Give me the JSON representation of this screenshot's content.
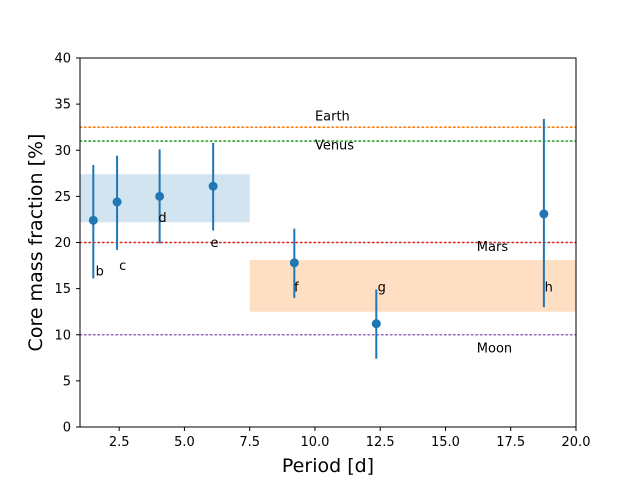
{
  "chart_data": {
    "type": "scatter",
    "title": "",
    "xlabel": "Period [d]",
    "ylabel": "Core mass fraction [%]",
    "xlim": [
      1.0,
      20.0
    ],
    "ylim": [
      0,
      40
    ],
    "xticks": [
      2.5,
      5.0,
      7.5,
      10.0,
      12.5,
      15.0,
      17.5,
      20.0
    ],
    "xtick_labels": [
      "2.5",
      "5.0",
      "7.5",
      "10.0",
      "12.5",
      "15.0",
      "17.5",
      "20.0"
    ],
    "yticks": [
      0,
      5,
      10,
      15,
      20,
      25,
      30,
      35,
      40
    ],
    "ytick_labels": [
      "0",
      "5",
      "10",
      "15",
      "20",
      "25",
      "30",
      "35",
      "40"
    ],
    "grid": false,
    "marker_color": "#1f77b4",
    "points": [
      {
        "label": "b",
        "x": 1.51,
        "y": 22.4,
        "yerr_low": 6.3,
        "yerr_high": 6.0
      },
      {
        "label": "c",
        "x": 2.42,
        "y": 24.4,
        "yerr_low": 5.2,
        "yerr_high": 5.0
      },
      {
        "label": "d",
        "x": 4.05,
        "y": 25.0,
        "yerr_low": 5.1,
        "yerr_high": 5.1
      },
      {
        "label": "e",
        "x": 6.1,
        "y": 26.1,
        "yerr_low": 4.8,
        "yerr_high": 4.7
      },
      {
        "label": "f",
        "x": 9.21,
        "y": 17.8,
        "yerr_low": 3.8,
        "yerr_high": 3.7
      },
      {
        "label": "g",
        "x": 12.35,
        "y": 11.2,
        "yerr_low": 3.8,
        "yerr_high": 3.7
      },
      {
        "label": "h",
        "x": 18.77,
        "y": 23.1,
        "yerr_low": 10.1,
        "yerr_high": 10.3
      }
    ],
    "point_label_offsets": {
      "b": [
        1.6,
        16.4
      ],
      "c": [
        2.5,
        17.0
      ],
      "d": [
        4.0,
        22.2
      ],
      "e": [
        6.0,
        19.5
      ],
      "f": [
        9.2,
        14.7
      ],
      "g": [
        12.4,
        14.7
      ],
      "h": [
        18.8,
        14.7
      ]
    },
    "bands": [
      {
        "x": [
          1.0,
          7.5
        ],
        "y": [
          22.2,
          27.4
        ],
        "color": "#1f77b4",
        "opacity": 0.2
      },
      {
        "x": [
          7.5,
          20.0
        ],
        "y": [
          12.5,
          18.1
        ],
        "color": "#ff7f0e",
        "opacity": 0.25
      }
    ],
    "reference_lines": [
      {
        "name": "Earth",
        "y": 32.5,
        "color": "#ff7f0e",
        "label_x": 10.0,
        "label_y": 33.2
      },
      {
        "name": "Venus",
        "y": 31.0,
        "color": "#2ca02c",
        "label_x": 10.0,
        "label_y": 30.1
      },
      {
        "name": "Mars",
        "y": 20.0,
        "color": "#d62728",
        "label_x": 16.2,
        "label_y": 19.1
      },
      {
        "name": "Moon",
        "y": 10.0,
        "color": "#9467bd",
        "label_x": 16.2,
        "label_y": 8.1
      }
    ]
  }
}
